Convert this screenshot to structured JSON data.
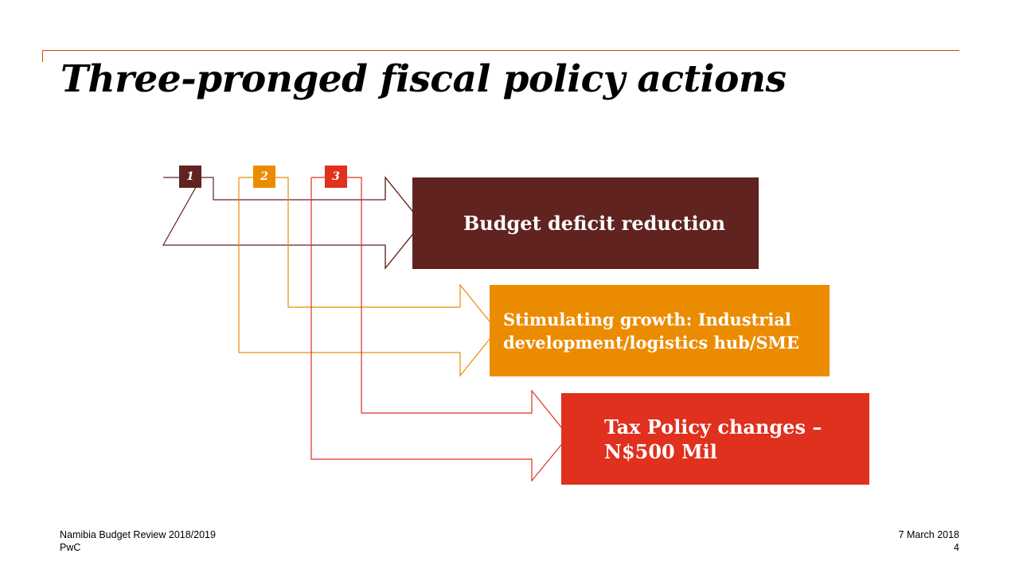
{
  "title": "Three-pronged fiscal policy actions",
  "actions": [
    {
      "number": "1",
      "label": "Budget deficit reduction",
      "color": "#602320"
    },
    {
      "number": "2",
      "label": "Stimulating growth: Industrial development/logistics hub/SME",
      "color": "#eb8c00"
    },
    {
      "number": "3",
      "label": "Tax Policy changes – N$500 Mil",
      "color": "#e0301e"
    }
  ],
  "footer": {
    "report": "Namibia Budget Review 2018/2019",
    "company": "PwC",
    "date": "7 March 2018",
    "page": "4"
  },
  "accent_color": "#d04a02"
}
